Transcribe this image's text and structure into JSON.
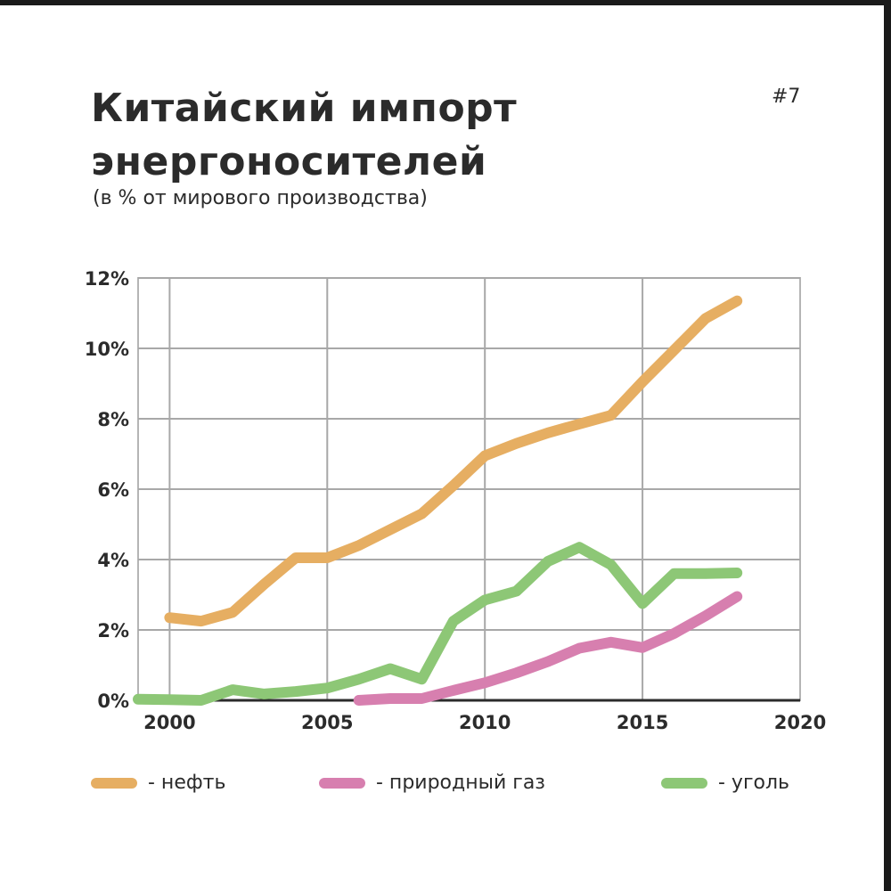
{
  "badge": "#7",
  "chart_data": {
    "type": "line",
    "title": "Китайский импорт энергоносителей",
    "subtitle": "(в % от мирового производства)",
    "xlabel": "",
    "ylabel": "",
    "xlim": [
      1999,
      2020
    ],
    "ylim": [
      0,
      12
    ],
    "x_ticks": [
      2000,
      2005,
      2010,
      2015,
      2020
    ],
    "x_tick_labels": [
      "2000",
      "2005",
      "2010",
      "2015",
      "2020"
    ],
    "y_ticks": [
      0,
      2,
      4,
      6,
      8,
      10,
      12
    ],
    "y_tick_labels": [
      "0%",
      "2%",
      "4%",
      "6%",
      "8%",
      "10%",
      "12%"
    ],
    "grid": true,
    "legend_position": "bottom",
    "series": [
      {
        "name": "- нефть",
        "color": "#E6AE62",
        "x": [
          2000,
          2001,
          2002,
          2003,
          2004,
          2005,
          2006,
          2007,
          2008,
          2009,
          2010,
          2011,
          2012,
          2013,
          2014,
          2015,
          2016,
          2017,
          2018
        ],
        "values": [
          2.35,
          2.25,
          2.5,
          3.3,
          4.05,
          4.05,
          4.4,
          4.85,
          5.3,
          6.1,
          6.95,
          7.3,
          7.6,
          7.85,
          8.1,
          9.05,
          9.95,
          10.85,
          11.35
        ]
      },
      {
        "name": "- природный газ",
        "color": "#D77FAF",
        "x": [
          2006,
          2007,
          2008,
          2009,
          2010,
          2011,
          2012,
          2013,
          2014,
          2015,
          2016,
          2017,
          2018
        ],
        "values": [
          0.0,
          0.05,
          0.05,
          0.28,
          0.5,
          0.78,
          1.1,
          1.48,
          1.65,
          1.5,
          1.9,
          2.4,
          2.95
        ]
      },
      {
        "name": "- уголь",
        "color": "#8DC776",
        "x": [
          1999,
          2000,
          2001,
          2002,
          2003,
          2004,
          2005,
          2006,
          2007,
          2008,
          2009,
          2010,
          2011,
          2012,
          2013,
          2014,
          2015,
          2016,
          2017,
          2018
        ],
        "values": [
          0.03,
          0.02,
          0.0,
          0.3,
          0.18,
          0.25,
          0.35,
          0.6,
          0.9,
          0.6,
          2.25,
          2.85,
          3.1,
          3.95,
          4.35,
          3.85,
          2.75,
          3.6,
          3.6,
          3.62
        ]
      }
    ]
  }
}
